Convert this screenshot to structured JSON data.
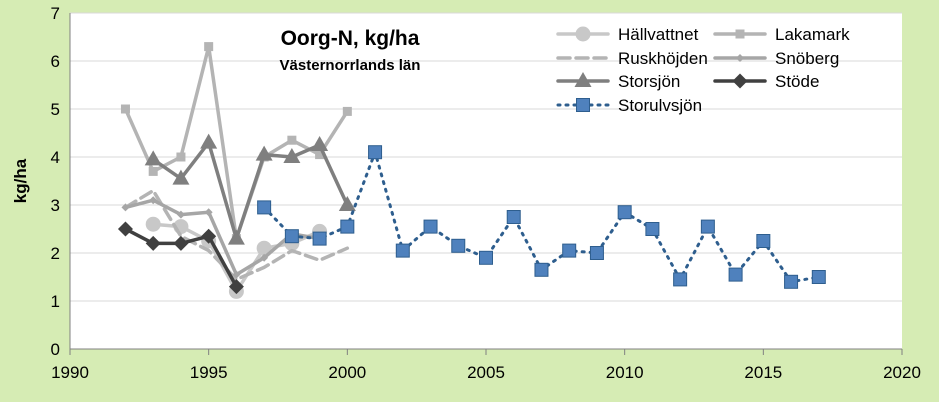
{
  "chart_data": {
    "type": "line",
    "title": "Oorg-N, kg/ha",
    "subtitle": "Västernorrlands län",
    "xlabel": "",
    "ylabel": "kg/ha",
    "xlim": [
      1990,
      2020
    ],
    "ylim": [
      0,
      7
    ],
    "xticks": [
      1990,
      1995,
      2000,
      2005,
      2010,
      2015,
      2020
    ],
    "yticks": [
      0,
      1,
      2,
      3,
      4,
      5,
      6,
      7
    ],
    "grid": "horizontal",
    "legend_position": "top-right",
    "series": [
      {
        "name": "Hällvattnet",
        "color": "#c8c8c8",
        "dash": "solid",
        "marker": "circle",
        "x": [
          1993,
          1994,
          1995,
          1996,
          1997,
          1998,
          1999
        ],
        "y": [
          2.6,
          2.55,
          2.25,
          1.2,
          2.1,
          2.2,
          2.45
        ]
      },
      {
        "name": "Lakamark",
        "color": "#b4b4b4",
        "dash": "solid",
        "marker": "square",
        "x": [
          1992,
          1993,
          1994,
          1995,
          1996,
          1997,
          1998,
          1999,
          2000
        ],
        "y": [
          5.0,
          3.7,
          4.0,
          6.3,
          2.3,
          4.0,
          4.35,
          4.05,
          4.95
        ]
      },
      {
        "name": "Ruskhöjden",
        "color": "#b4b4b4",
        "dash": "dashed",
        "marker": "none",
        "x": [
          1992,
          1993,
          1994,
          1995,
          1996,
          1997,
          1998,
          1999,
          2000
        ],
        "y": [
          2.95,
          3.3,
          2.35,
          2.05,
          1.45,
          1.7,
          2.05,
          1.85,
          2.1
        ]
      },
      {
        "name": "Snöberg",
        "color": "#a6a6a6",
        "dash": "solid",
        "marker": "diamond-small",
        "x": [
          1992,
          1993,
          1994,
          1995,
          1996,
          1997,
          1998,
          1999
        ],
        "y": [
          2.95,
          3.1,
          2.8,
          2.85,
          1.55,
          1.9,
          2.4,
          2.3
        ]
      },
      {
        "name": "Storsjön",
        "color": "#7f7f7f",
        "dash": "solid",
        "marker": "triangle",
        "x": [
          1993,
          1994,
          1995,
          1996,
          1997,
          1998,
          1999,
          2000
        ],
        "y": [
          3.95,
          3.55,
          4.3,
          2.3,
          4.05,
          4.0,
          4.25,
          3.0
        ]
      },
      {
        "name": "Stöde",
        "color": "#404040",
        "dash": "solid",
        "marker": "diamond",
        "x": [
          1992,
          1993,
          1994,
          1995,
          1996
        ],
        "y": [
          2.5,
          2.2,
          2.2,
          2.35,
          1.3
        ]
      },
      {
        "name": "Storulvsjön",
        "color": "#2e5e8e",
        "markerfill": "#4f81bd",
        "dash": "dotted",
        "marker": "square-large",
        "x": [
          1997,
          1998,
          1999,
          2000,
          2001,
          2002,
          2003,
          2004,
          2005,
          2006,
          2007,
          2008,
          2009,
          2010,
          2011,
          2012,
          2013,
          2014,
          2015,
          2016,
          2017
        ],
        "y": [
          2.95,
          2.35,
          2.3,
          2.55,
          4.1,
          2.05,
          2.55,
          2.15,
          1.9,
          2.75,
          1.65,
          2.05,
          2.0,
          2.85,
          2.5,
          1.45,
          2.55,
          1.55,
          2.25,
          1.4,
          1.5
        ]
      }
    ]
  }
}
